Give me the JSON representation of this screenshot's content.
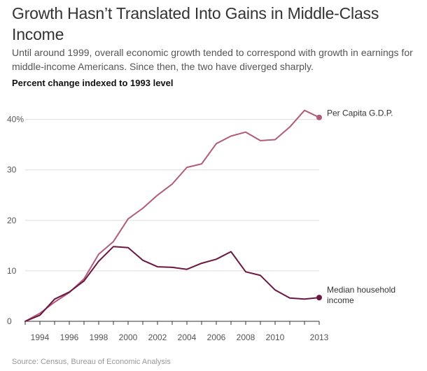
{
  "header": {
    "title": "Growth Hasn’t Translated Into Gains in Middle-Class Income",
    "subtitle": "Until around 1999, overall economic growth tended to correspond with growth in earnings for middle-income Americans. Since then, the two have diverged sharply.",
    "chart_heading": "Percent change indexed to 1993 level"
  },
  "footer": {
    "source": "Source: Census, Bureau of Economic Analysis"
  },
  "colors": {
    "gdp": "#b05c7c",
    "income": "#6b1740",
    "grid": "#dddddd",
    "axis": "#333333"
  },
  "chart_data": {
    "type": "line",
    "title": "Growth Hasn’t Translated Into Gains in Middle-Class Income",
    "ylabel": "Percent change indexed to 1993 level",
    "xlabel": "",
    "xlim": [
      1993,
      2013
    ],
    "ylim": [
      0,
      43
    ],
    "y_ticks": [
      0,
      10,
      20,
      30,
      40
    ],
    "y_tick_labels": [
      "0",
      "10",
      "20",
      "30",
      "40%"
    ],
    "x_ticks": [
      1994,
      1996,
      1998,
      2000,
      2002,
      2004,
      2006,
      2008,
      2010,
      2013
    ],
    "x_tick_labels": [
      "1994",
      "1996",
      "1998",
      "2000",
      "2002",
      "2004",
      "2006",
      "2008",
      "2010",
      "2013"
    ],
    "x": [
      1993,
      1994,
      1995,
      1996,
      1997,
      1998,
      1999,
      2000,
      2001,
      2002,
      2003,
      2004,
      2005,
      2006,
      2007,
      2008,
      2009,
      2010,
      2011,
      2012,
      2013
    ],
    "series": [
      {
        "name": "Per Capita G.D.P.",
        "legend": [
          "Per Capita G.D.P."
        ],
        "values": [
          0,
          1.6,
          3.8,
          5.7,
          8.4,
          13.3,
          15.8,
          20.3,
          22.4,
          25.0,
          27.2,
          30.5,
          31.2,
          35.2,
          36.7,
          37.5,
          35.8,
          36.0,
          38.5,
          41.8,
          40.4
        ]
      },
      {
        "name": "Median household income",
        "legend": [
          "Median household",
          "income"
        ],
        "values": [
          0,
          1.2,
          4.4,
          5.8,
          8.0,
          11.9,
          14.8,
          14.6,
          12.1,
          10.8,
          10.7,
          10.3,
          11.5,
          12.3,
          13.8,
          9.8,
          9.1,
          6.2,
          4.6,
          4.4,
          4.7
        ]
      }
    ]
  }
}
